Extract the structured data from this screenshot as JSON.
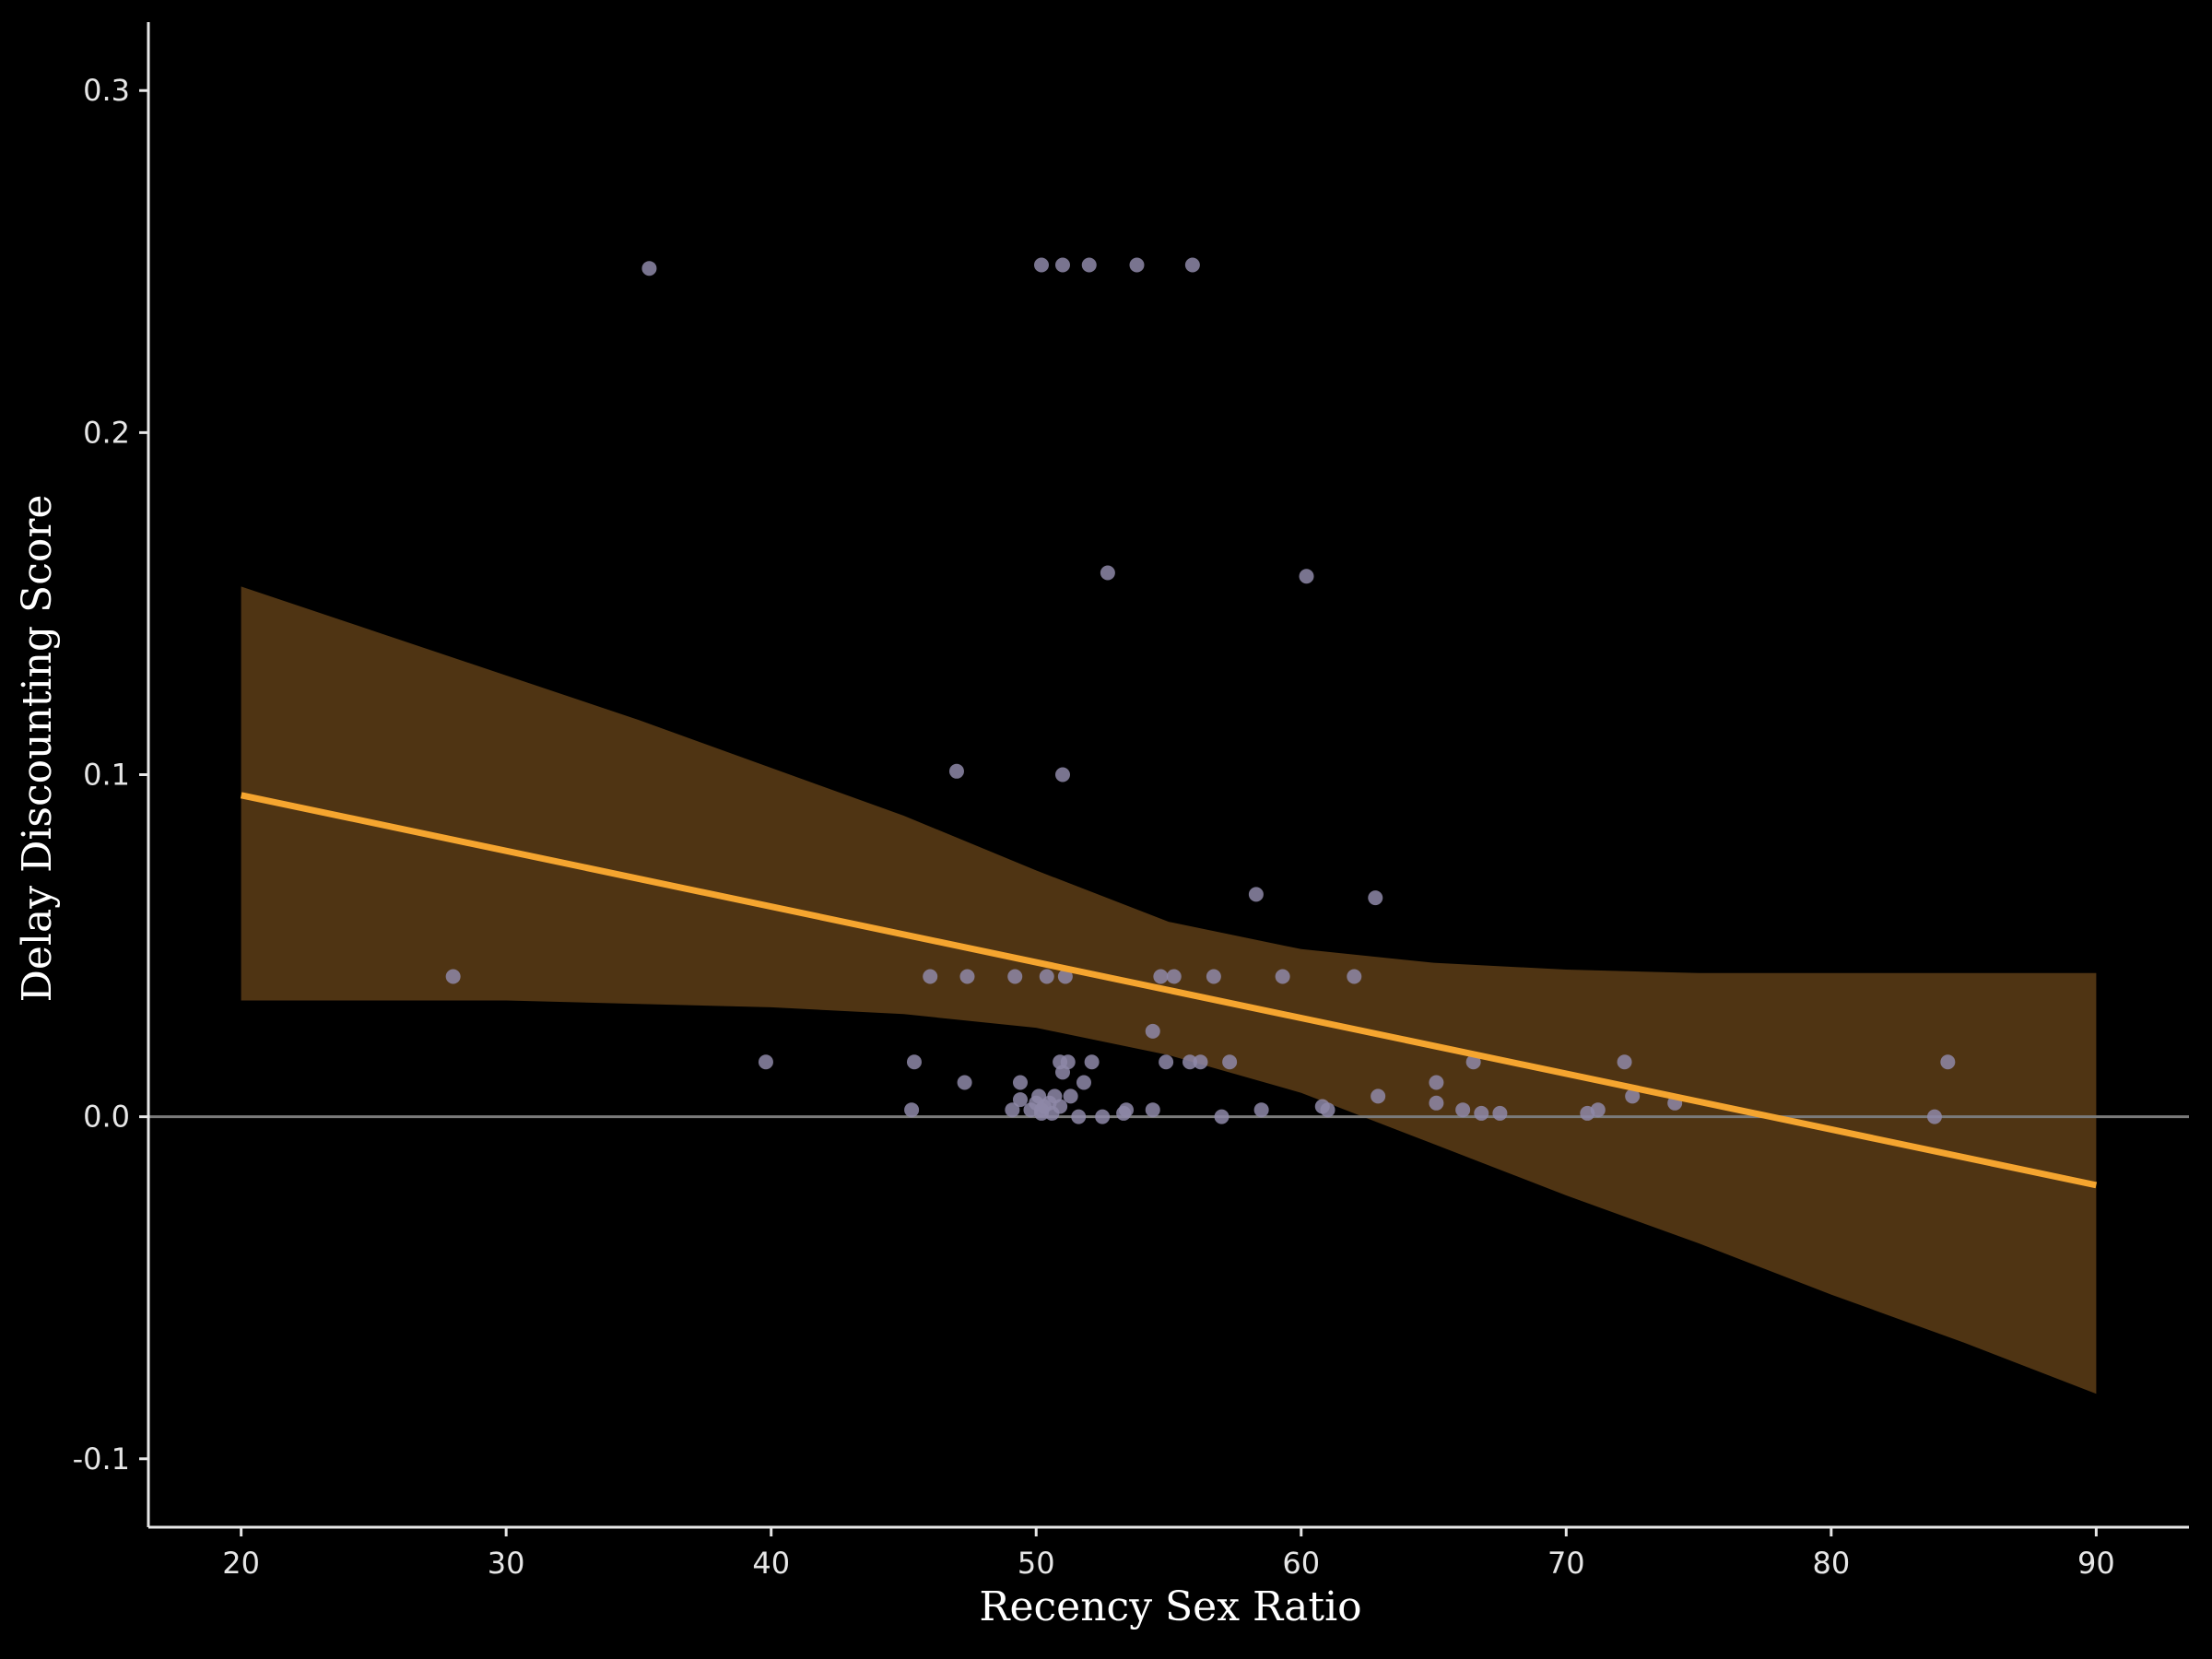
{
  "chart_data": {
    "type": "scatter",
    "title": "",
    "xlabel": "Recency Sex Ratio",
    "ylabel": "Delay Discounting Score",
    "xlim": [
      16.5,
      93.5
    ],
    "ylim": [
      -0.12,
      0.32
    ],
    "xticks": [
      20,
      30,
      40,
      50,
      60,
      70,
      80,
      90
    ],
    "yticks": [
      -0.1,
      0.0,
      0.1,
      0.2,
      0.3
    ],
    "ytick_labels": [
      "-0.1",
      "0.0",
      "0.1",
      "0.2",
      "0.3"
    ],
    "xtick_labels": [
      "20",
      "30",
      "40",
      "50",
      "60",
      "70",
      "80",
      "90"
    ],
    "grid": false,
    "reference_line_y": 0,
    "colors": {
      "background": "#000000",
      "points": "#8e88a8",
      "fit_line": "#f5a52f",
      "confidence_band": "#4f3413",
      "axis": "#e6e6e6",
      "reference_line": "#7a7a7a"
    },
    "series": [
      {
        "kind": "points",
        "x": [
          35.4,
          50.2,
          51.0,
          52.0,
          53.8,
          55.9,
          52.7,
          60.2,
          47.0,
          51.0,
          58.3,
          62.8,
          28.0,
          46.0,
          47.4,
          49.2,
          50.4,
          51.1,
          54.7,
          55.2,
          56.7,
          59.3,
          62.0,
          54.4,
          39.8,
          45.4,
          50.9,
          51.2,
          52.1,
          54.9,
          55.8,
          56.2,
          57.3,
          66.5,
          72.2,
          84.4,
          47.3,
          49.4,
          51.8,
          65.1,
          49.4,
          50.1,
          50.7,
          51.3,
          62.9,
          72.5,
          45.3,
          49.1,
          50.3,
          53.4,
          54.4,
          58.5,
          60.8,
          61.0,
          65.1,
          66.1,
          71.2,
          74.1,
          50.2,
          50.6,
          51.6,
          53.3,
          57.0,
          66.8,
          67.5,
          70.8,
          52.5,
          83.9,
          50.0,
          50.5,
          50.9,
          51.0,
          49.8,
          50.2
        ],
        "y": [
          0.248,
          0.249,
          0.249,
          0.249,
          0.249,
          0.249,
          0.159,
          0.158,
          0.101,
          0.1,
          0.065,
          0.064,
          0.041,
          0.041,
          0.041,
          0.041,
          0.041,
          0.041,
          0.041,
          0.041,
          0.041,
          0.041,
          0.041,
          0.025,
          0.016,
          0.016,
          0.016,
          0.016,
          0.016,
          0.016,
          0.016,
          0.016,
          0.016,
          0.016,
          0.016,
          0.016,
          0.01,
          0.01,
          0.01,
          0.01,
          0.005,
          0.006,
          0.006,
          0.006,
          0.006,
          0.006,
          0.002,
          0.002,
          0.003,
          0.002,
          0.002,
          0.002,
          0.003,
          0.002,
          0.004,
          0.002,
          0.002,
          0.004,
          0.001,
          0.001,
          0.0,
          0.001,
          0.0,
          0.001,
          0.001,
          0.001,
          0.0,
          0.0,
          0.004,
          0.004,
          0.003,
          0.013,
          0.002,
          0.002
        ]
      },
      {
        "kind": "regression_line",
        "x": [
          20,
          90
        ],
        "y": [
          0.094,
          -0.02
        ]
      },
      {
        "kind": "confidence_band",
        "x": [
          20,
          25,
          30,
          35,
          40,
          45,
          50,
          55,
          60,
          65,
          70,
          75,
          80,
          85,
          90
        ],
        "upper": [
          0.155,
          0.142,
          0.129,
          0.116,
          0.102,
          0.088,
          0.072,
          0.057,
          0.049,
          0.045,
          0.043,
          0.042,
          0.042,
          0.042,
          0.042
        ],
        "lower": [
          0.034,
          0.034,
          0.034,
          0.033,
          0.032,
          0.03,
          0.026,
          0.018,
          0.007,
          -0.008,
          -0.023,
          -0.037,
          -0.052,
          -0.066,
          -0.081
        ]
      }
    ]
  }
}
